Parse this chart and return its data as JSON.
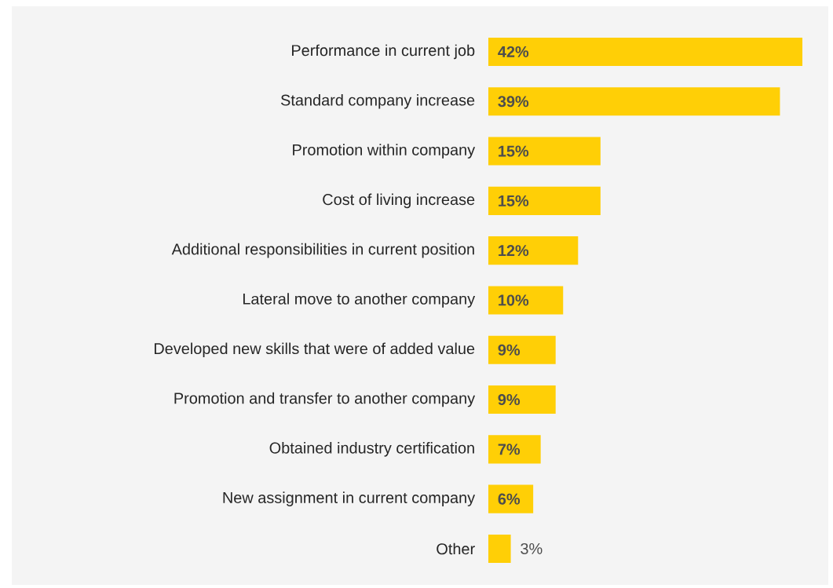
{
  "chart_data": {
    "type": "bar",
    "orientation": "horizontal",
    "color": "#ffcf06",
    "categories": [
      "Performance in current job",
      "Standard company increase",
      "Promotion within company",
      "Cost of living increase",
      "Additional responsibilities in current position",
      "Lateral move to another company",
      "Developed new skills that were of added value",
      "Promotion and transfer to another company",
      "Obtained industry certification",
      "New assignment in current company",
      "Other"
    ],
    "values": [
      42,
      39,
      15,
      15,
      12,
      10,
      9,
      9,
      7,
      6,
      3
    ],
    "value_labels": [
      "42%",
      "39%",
      "15%",
      "15%",
      "12%",
      "10%",
      "9%",
      "9%",
      "7%",
      "6%",
      "3%"
    ]
  }
}
